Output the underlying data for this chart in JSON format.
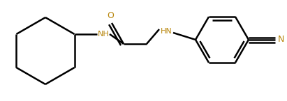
{
  "bg_color": "#ffffff",
  "line_color": "#000000",
  "heteroatom_color": "#b8860b",
  "bond_width": 1.8,
  "figsize": [
    4.11,
    1.45
  ],
  "dpi": 100,
  "xlim": [
    0,
    411
  ],
  "ylim": [
    0,
    145
  ]
}
